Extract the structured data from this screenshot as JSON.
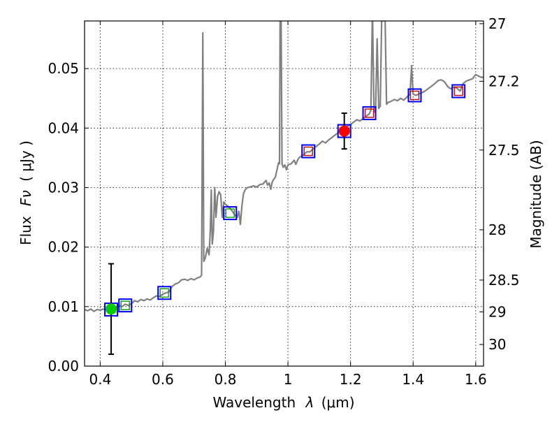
{
  "chart_data": {
    "type": "line",
    "title": "",
    "xlabel": "Wavelength",
    "xlabel_symbol": "λ",
    "xlabel_unit": "(μm)",
    "ylabel": "Flux",
    "ylabel_symbol": "Fν",
    "ylabel_unit": "( μJy )",
    "y2label": "Magnitude (AB)",
    "xlim": [
      0.35,
      1.625
    ],
    "ylim": [
      0.0,
      0.058
    ],
    "grid": true,
    "x_ticks": [
      {
        "value": 0.4,
        "label": "0.4"
      },
      {
        "value": 0.6,
        "label": "0.6"
      },
      {
        "value": 0.8,
        "label": "0.8"
      },
      {
        "value": 1.0,
        "label": "1"
      },
      {
        "value": 1.2,
        "label": "1.2"
      },
      {
        "value": 1.4,
        "label": "1.4"
      },
      {
        "value": 1.6,
        "label": "1.6"
      }
    ],
    "y_ticks": [
      {
        "value": 0.0,
        "label": "0.00"
      },
      {
        "value": 0.01,
        "label": "0.01"
      },
      {
        "value": 0.02,
        "label": "0.02"
      },
      {
        "value": 0.03,
        "label": "0.03"
      },
      {
        "value": 0.04,
        "label": "0.04"
      },
      {
        "value": 0.05,
        "label": "0.05"
      }
    ],
    "y2_ticks": [
      {
        "mag": 27.0,
        "label": "27"
      },
      {
        "mag": 27.2,
        "label": "27.2"
      },
      {
        "mag": 27.5,
        "label": "27.5"
      },
      {
        "mag": 28.0,
        "label": "28"
      },
      {
        "mag": 28.5,
        "label": "28.5"
      },
      {
        "mag": 29.0,
        "label": "29"
      },
      {
        "mag": 30.0,
        "label": "30"
      }
    ],
    "series": [
      {
        "name": "model SED",
        "kind": "line",
        "color": "#808080",
        "points": [
          [
            0.35,
            0.0095
          ],
          [
            0.36,
            0.0093
          ],
          [
            0.37,
            0.0096
          ],
          [
            0.38,
            0.0092
          ],
          [
            0.39,
            0.0095
          ],
          [
            0.4,
            0.0094
          ],
          [
            0.41,
            0.0096
          ],
          [
            0.42,
            0.0094
          ],
          [
            0.43,
            0.0097
          ],
          [
            0.44,
            0.0098
          ],
          [
            0.45,
            0.0097
          ],
          [
            0.46,
            0.0102
          ],
          [
            0.47,
            0.01
          ],
          [
            0.48,
            0.0104
          ],
          [
            0.49,
            0.0102
          ],
          [
            0.5,
            0.0105
          ],
          [
            0.51,
            0.011
          ],
          [
            0.52,
            0.0108
          ],
          [
            0.53,
            0.0112
          ],
          [
            0.54,
            0.011
          ],
          [
            0.55,
            0.0113
          ],
          [
            0.56,
            0.0111
          ],
          [
            0.57,
            0.0115
          ],
          [
            0.58,
            0.0118
          ],
          [
            0.59,
            0.0117
          ],
          [
            0.6,
            0.0121
          ],
          [
            0.61,
            0.0123
          ],
          [
            0.62,
            0.0125
          ],
          [
            0.63,
            0.0134
          ],
          [
            0.64,
            0.0138
          ],
          [
            0.65,
            0.014
          ],
          [
            0.66,
            0.0145
          ],
          [
            0.67,
            0.0146
          ],
          [
            0.68,
            0.0144
          ],
          [
            0.69,
            0.0147
          ],
          [
            0.7,
            0.0145
          ],
          [
            0.71,
            0.0148
          ],
          [
            0.72,
            0.015
          ],
          [
            0.724,
            0.0153
          ],
          [
            0.728,
            0.056
          ],
          [
            0.731,
            0.0176
          ],
          [
            0.736,
            0.0182
          ],
          [
            0.742,
            0.0198
          ],
          [
            0.748,
            0.0187
          ],
          [
            0.752,
            0.023
          ],
          [
            0.755,
            0.0296
          ],
          [
            0.758,
            0.0205
          ],
          [
            0.762,
            0.0226
          ],
          [
            0.766,
            0.03
          ],
          [
            0.77,
            0.025
          ],
          [
            0.775,
            0.0285
          ],
          [
            0.78,
            0.0293
          ],
          [
            0.785,
            0.0288
          ],
          [
            0.79,
            0.025
          ],
          [
            0.795,
            0.0276
          ],
          [
            0.8,
            0.0272
          ],
          [
            0.81,
            0.0268
          ],
          [
            0.82,
            0.0262
          ],
          [
            0.83,
            0.0254
          ],
          [
            0.838,
            0.025
          ],
          [
            0.843,
            0.026
          ],
          [
            0.848,
            0.0238
          ],
          [
            0.853,
            0.027
          ],
          [
            0.858,
            0.029
          ],
          [
            0.863,
            0.0296
          ],
          [
            0.87,
            0.03
          ],
          [
            0.88,
            0.0301
          ],
          [
            0.89,
            0.0303
          ],
          [
            0.9,
            0.0301
          ],
          [
            0.91,
            0.0305
          ],
          [
            0.92,
            0.0306
          ],
          [
            0.93,
            0.0312
          ],
          [
            0.935,
            0.0304
          ],
          [
            0.94,
            0.0308
          ],
          [
            0.945,
            0.0297
          ],
          [
            0.95,
            0.031
          ],
          [
            0.96,
            0.0318
          ],
          [
            0.965,
            0.033
          ],
          [
            0.97,
            0.0342
          ],
          [
            0.973,
            0.034
          ],
          [
            0.975,
            0.06
          ],
          [
            0.978,
            0.06
          ],
          [
            0.981,
            0.034
          ],
          [
            0.985,
            0.0334
          ],
          [
            0.99,
            0.0338
          ],
          [
            0.995,
            0.033
          ],
          [
            1.0,
            0.0338
          ],
          [
            1.01,
            0.034
          ],
          [
            1.02,
            0.0346
          ],
          [
            1.025,
            0.0339
          ],
          [
            1.03,
            0.0345
          ],
          [
            1.035,
            0.035
          ],
          [
            1.04,
            0.0352
          ],
          [
            1.05,
            0.0355
          ],
          [
            1.06,
            0.036
          ],
          [
            1.07,
            0.036
          ],
          [
            1.08,
            0.0365
          ],
          [
            1.09,
            0.0369
          ],
          [
            1.1,
            0.0373
          ],
          [
            1.11,
            0.0378
          ],
          [
            1.12,
            0.0375
          ],
          [
            1.13,
            0.038
          ],
          [
            1.14,
            0.0384
          ],
          [
            1.15,
            0.0388
          ],
          [
            1.16,
            0.0392
          ],
          [
            1.17,
            0.0395
          ],
          [
            1.18,
            0.0398
          ],
          [
            1.19,
            0.0403
          ],
          [
            1.2,
            0.0406
          ],
          [
            1.21,
            0.041
          ],
          [
            1.22,
            0.0414
          ],
          [
            1.23,
            0.0412
          ],
          [
            1.24,
            0.0416
          ],
          [
            1.25,
            0.042
          ],
          [
            1.26,
            0.0424
          ],
          [
            1.265,
            0.043
          ],
          [
            1.27,
            0.06
          ],
          [
            1.275,
            0.0427
          ],
          [
            1.28,
            0.0429
          ],
          [
            1.285,
            0.055
          ],
          [
            1.29,
            0.0433
          ],
          [
            1.295,
            0.0437
          ],
          [
            1.3,
            0.06
          ],
          [
            1.305,
            0.058
          ],
          [
            1.31,
            0.06
          ],
          [
            1.315,
            0.044
          ],
          [
            1.32,
            0.0443
          ],
          [
            1.33,
            0.0445
          ],
          [
            1.34,
            0.0448
          ],
          [
            1.35,
            0.0446
          ],
          [
            1.36,
            0.045
          ],
          [
            1.37,
            0.0447
          ],
          [
            1.38,
            0.0452
          ],
          [
            1.385,
            0.0455
          ],
          [
            1.39,
            0.0456
          ],
          [
            1.395,
            0.0505
          ],
          [
            1.4,
            0.0457
          ],
          [
            1.41,
            0.0455
          ],
          [
            1.42,
            0.0458
          ],
          [
            1.43,
            0.046
          ],
          [
            1.44,
            0.0463
          ],
          [
            1.45,
            0.0467
          ],
          [
            1.46,
            0.0471
          ],
          [
            1.47,
            0.0475
          ],
          [
            1.48,
            0.048
          ],
          [
            1.49,
            0.0481
          ],
          [
            1.5,
            0.0478
          ],
          [
            1.51,
            0.047
          ],
          [
            1.52,
            0.0466
          ],
          [
            1.53,
            0.0469
          ],
          [
            1.54,
            0.0467
          ],
          [
            1.55,
            0.0462
          ],
          [
            1.56,
            0.0475
          ],
          [
            1.57,
            0.0479
          ],
          [
            1.58,
            0.0481
          ],
          [
            1.59,
            0.0483
          ],
          [
            1.6,
            0.049
          ],
          [
            1.61,
            0.0487
          ],
          [
            1.62,
            0.0485
          ],
          [
            1.625,
            0.0486
          ]
        ]
      },
      {
        "name": "blue squares",
        "kind": "square",
        "color": "#0000ff",
        "x": [
          0.435,
          0.48,
          0.605,
          0.815,
          1.065,
          1.18,
          1.26,
          1.405,
          1.545
        ],
        "y": [
          0.0095,
          0.0102,
          0.0123,
          0.0257,
          0.0361,
          0.0395,
          0.0425,
          0.0455,
          0.0462
        ]
      },
      {
        "name": "green model squares",
        "kind": "square",
        "color": "#00a000",
        "x": [
          0.48,
          0.605,
          0.815
        ],
        "y": [
          0.0102,
          0.0123,
          0.0257
        ]
      },
      {
        "name": "red model squares",
        "kind": "square",
        "color": "#cc0000",
        "x": [
          1.065,
          1.26,
          1.405,
          1.545
        ],
        "y": [
          0.0361,
          0.0425,
          0.0455,
          0.0462
        ]
      },
      {
        "name": "green measurement",
        "kind": "circle",
        "color": "#00cc00",
        "x": [
          0.435
        ],
        "y": [
          0.0096
        ],
        "err": [
          0.0076
        ]
      },
      {
        "name": "red measurement",
        "kind": "circle",
        "color": "#ff0000",
        "x": [
          1.18
        ],
        "y": [
          0.0395
        ],
        "err": [
          0.003
        ]
      }
    ]
  }
}
